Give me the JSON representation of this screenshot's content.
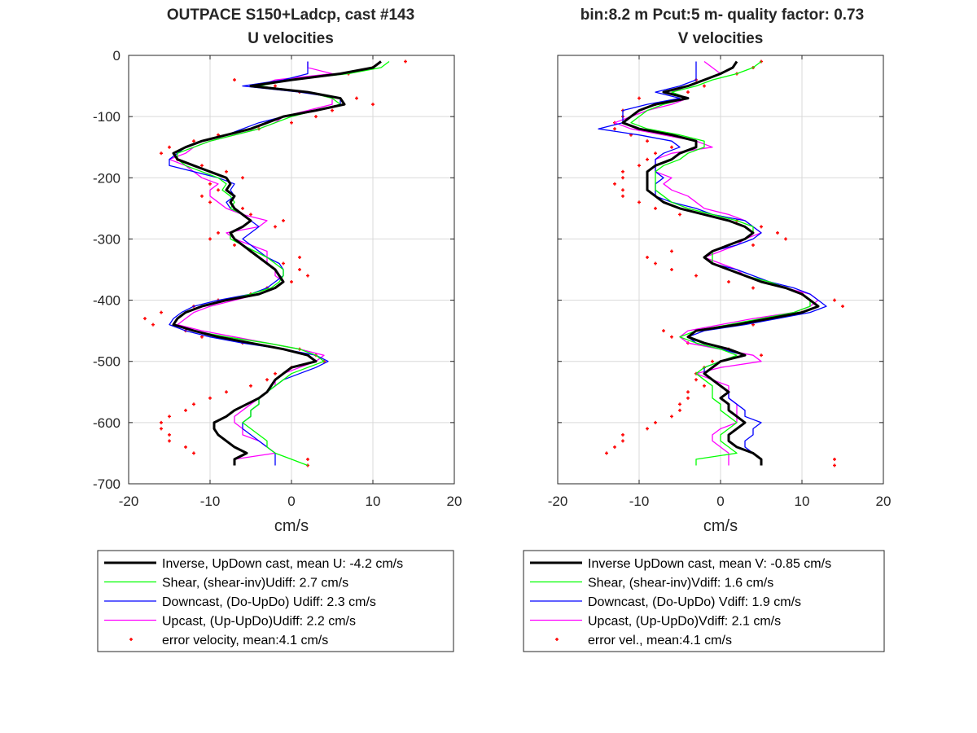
{
  "colors": {
    "inverse": "#000000",
    "shear": "#00ff00",
    "downcast": "#0000ff",
    "upcast": "#ff00ff",
    "error": "#ff0000",
    "grid": "#d9d9d9",
    "axis": "#262626"
  },
  "chart_data": [
    {
      "type": "line",
      "title": "OUTPACE S150+Ladcp, cast #143",
      "subtitle": "U velocities",
      "xlabel": "cm/s",
      "ylabel": "",
      "xlim": [
        -20,
        20
      ],
      "ylim": [
        -700,
        0
      ],
      "xticks": [
        "-20",
        "-10",
        "0",
        "10",
        "20"
      ],
      "yticks": [
        "0",
        "-100",
        "-200",
        "-300",
        "-400",
        "-500",
        "-600",
        "-700"
      ],
      "grid": true,
      "legend": {
        "placement": "below",
        "entries": [
          "Inverse, UpDown cast, mean U:  -4.2 cm/s",
          "Shear, (shear-inv)Udiff:  2.7 cm/s",
          "Downcast, (Do-UpDo) Udiff:  2.3 cm/s",
          "Upcast, (Up-UpDo)Udiff:  2.2 cm/s",
          "error velocity, mean:4.1 cm/s"
        ]
      },
      "depth": [
        -10,
        -20,
        -30,
        -40,
        -50,
        -60,
        -70,
        -80,
        -90,
        -100,
        -110,
        -120,
        -130,
        -140,
        -150,
        -160,
        -170,
        -180,
        -190,
        -200,
        -210,
        -220,
        -230,
        -240,
        -250,
        -260,
        -270,
        -280,
        -290,
        -300,
        -310,
        -320,
        -330,
        -340,
        -350,
        -360,
        -370,
        -380,
        -390,
        -400,
        -410,
        -420,
        -430,
        -440,
        -450,
        -460,
        -470,
        -480,
        -490,
        -500,
        -510,
        -520,
        -530,
        -540,
        -550,
        -560,
        -570,
        -580,
        -590,
        -600,
        -610,
        -620,
        -630,
        -640,
        -650,
        -660,
        -670
      ],
      "series": [
        {
          "key": "inverse",
          "values": [
            11,
            10,
            6,
            0,
            -5,
            2,
            6,
            6.5,
            3,
            -1,
            -3,
            -5,
            -8,
            -11,
            -13,
            -14.5,
            -14,
            -12,
            -10,
            -8,
            -7.5,
            -8,
            -7,
            -7.5,
            -7,
            -6,
            -5,
            -6,
            -7.5,
            -7,
            -6,
            -5,
            -4,
            -3,
            -2,
            -1.5,
            -1,
            -2,
            -4,
            -8,
            -11,
            -13,
            -14,
            -14.5,
            -12,
            -9,
            -5,
            -1,
            2,
            3,
            0,
            -1,
            -2,
            -2.5,
            -3,
            -4,
            -5.5,
            -7,
            -8,
            -9.5,
            -9.5,
            -9,
            -8,
            -7,
            -5.5,
            -7,
            -7
          ]
        },
        {
          "key": "shear",
          "values": [
            12,
            11,
            7,
            0,
            -4,
            2,
            5,
            6,
            3,
            0,
            -2,
            -4,
            -7,
            -10,
            -12,
            -14,
            -14,
            -13,
            -11,
            -9,
            -8,
            -8.5,
            -7.5,
            -7,
            -7.5,
            -6,
            -5,
            -6,
            -7.5,
            -7.5,
            -6,
            -4.5,
            -3,
            -2,
            -1,
            -1,
            -1.5,
            -2.5,
            -5,
            -8,
            -11,
            -13,
            -14,
            -14.5,
            -12,
            -8,
            -3,
            1,
            3,
            4,
            2,
            0,
            -1,
            -2,
            -3,
            -4,
            -4,
            -5,
            -5,
            -6,
            -5,
            -4,
            -3,
            -3,
            -2,
            0,
            2
          ]
        },
        {
          "key": "downcast",
          "values": [
            2,
            2,
            2,
            -1,
            -6,
            1,
            6,
            6,
            3,
            -1,
            -4,
            -6,
            -8,
            -11,
            -13,
            -14,
            -15,
            -15,
            -12,
            -9,
            -7,
            -7.5,
            -7,
            -8,
            -7.5,
            -6,
            -5,
            -4,
            -5,
            -6,
            -5,
            -4,
            -3,
            -1.5,
            -1,
            -1,
            -2,
            -3,
            -5,
            -9,
            -12,
            -13.5,
            -14.5,
            -15,
            -13,
            -10,
            -6,
            -1,
            3,
            4.5,
            3,
            1,
            -1,
            -2,
            -3,
            -4,
            -4,
            -5,
            -5,
            -6,
            -6,
            -5,
            -4,
            -3,
            -2,
            -2,
            -2
          ]
        },
        {
          "key": "upcast",
          "values": [
            2,
            2,
            5,
            -2,
            -4,
            2,
            5,
            5,
            2,
            -1,
            -2,
            -4,
            -7,
            -10,
            -12,
            -13,
            -15,
            -13,
            -12,
            -11,
            -9,
            -10,
            -10,
            -9,
            -8,
            -6,
            -3,
            -4,
            -8,
            -7,
            -5,
            -3,
            -3,
            -3,
            -2,
            -2,
            -1,
            -2,
            -4,
            -7,
            -10,
            -12,
            -13,
            -14,
            -11,
            -7,
            -3,
            1,
            4,
            3,
            1,
            -1,
            -2,
            -2,
            -3,
            -4,
            -5,
            -6,
            -7,
            -7,
            -6,
            -6,
            -4,
            -3,
            -2,
            -7,
            -7
          ]
        },
        {
          "key": "error",
          "values": [
            14,
            10,
            7,
            -7,
            -2,
            1,
            8,
            10,
            5,
            3,
            0,
            -4,
            -9,
            -12,
            -15,
            -16,
            -14,
            -11,
            -8,
            -6,
            -10,
            -9,
            -11,
            -10,
            -6,
            -5,
            -1,
            -2,
            -9,
            -10,
            -7,
            -5,
            1,
            -1,
            1,
            2,
            0,
            -3,
            -5,
            -9,
            -12,
            -16,
            -18,
            -17,
            -13,
            -11,
            -6,
            1,
            3,
            4,
            0,
            -2,
            -3,
            -5,
            -8,
            -10,
            -12,
            -13,
            -15,
            -16,
            -16,
            -15,
            -15,
            -13,
            -12,
            2,
            2
          ]
        }
      ]
    },
    {
      "type": "line",
      "title": "bin:8.2 m  Pcut:5 m- quality factor:  0.73",
      "subtitle": "V velocities",
      "xlabel": "cm/s",
      "ylabel": "",
      "xlim": [
        -20,
        20
      ],
      "ylim": [
        -700,
        0
      ],
      "xticks": [
        "-20",
        "-10",
        "0",
        "10",
        "20"
      ],
      "yticks": [],
      "grid": true,
      "legend": {
        "placement": "below",
        "entries": [
          "Inverse UpDown cast, mean V:  -0.85 cm/s",
          "Shear, (shear-inv)Vdiff:  1.6 cm/s",
          "Downcast, (Do-UpDo) Vdiff:  1.9 cm/s",
          "Upcast, (Up-UpDo)Vdiff:  2.1 cm/s",
          "error vel., mean:4.1 cm/s"
        ]
      },
      "depth": [
        -10,
        -20,
        -30,
        -40,
        -50,
        -60,
        -70,
        -80,
        -90,
        -100,
        -110,
        -120,
        -130,
        -140,
        -150,
        -160,
        -170,
        -180,
        -190,
        -200,
        -210,
        -220,
        -230,
        -240,
        -250,
        -260,
        -270,
        -280,
        -290,
        -300,
        -310,
        -320,
        -330,
        -340,
        -350,
        -360,
        -370,
        -380,
        -390,
        -400,
        -410,
        -420,
        -430,
        -440,
        -450,
        -460,
        -470,
        -480,
        -490,
        -500,
        -510,
        -520,
        -530,
        -540,
        -550,
        -560,
        -570,
        -580,
        -590,
        -600,
        -610,
        -620,
        -630,
        -640,
        -650,
        -660,
        -670
      ],
      "series": [
        {
          "key": "inverse",
          "values": [
            2,
            1.5,
            0,
            -2,
            -4,
            -7,
            -4,
            -8,
            -10,
            -11,
            -12,
            -10,
            -6,
            -3,
            -3,
            -5,
            -6,
            -8,
            -9,
            -9,
            -9,
            -9,
            -8,
            -7,
            -5,
            -2,
            1,
            3,
            4,
            3,
            1,
            -1,
            -2,
            -1,
            1,
            3,
            5,
            8,
            10,
            11,
            12,
            10,
            6,
            2,
            -3,
            -4,
            -2,
            1,
            3,
            0,
            -1,
            -2,
            -1,
            0,
            1,
            0,
            1,
            1,
            2,
            3,
            2,
            1,
            1,
            2,
            4,
            5,
            5
          ]
        },
        {
          "key": "shear",
          "values": [
            5,
            4,
            2,
            -1,
            -3,
            -6,
            -4,
            -7,
            -9,
            -10,
            -11,
            -9,
            -5,
            -2,
            -2,
            -4,
            -5,
            -7,
            -8,
            -8,
            -8,
            -8,
            -7,
            -6,
            -4,
            -1,
            2,
            4,
            4,
            3,
            1,
            -1,
            -1,
            -1,
            1,
            3,
            6,
            8,
            10,
            11,
            11,
            9,
            5,
            1,
            -3,
            -5,
            -3,
            0,
            2,
            0,
            -2,
            -3,
            -2,
            -1,
            -1,
            -1,
            0,
            0,
            1,
            2,
            1,
            0,
            0,
            1,
            2,
            -3,
            -3
          ]
        },
        {
          "key": "downcast",
          "values": [
            -3,
            -3,
            -3,
            -3,
            -5,
            -8,
            -5,
            -9,
            -12,
            -12,
            -12,
            -15,
            -10,
            -6,
            -5,
            -7,
            -8,
            -8,
            -8,
            -7,
            -8,
            -8,
            -8,
            -6,
            -3,
            -1,
            3,
            4,
            5,
            4,
            2,
            -1,
            -2,
            -1,
            2,
            4,
            6,
            9,
            11,
            12,
            13,
            11,
            7,
            3,
            -2,
            -4,
            -3,
            0,
            3,
            0,
            -2,
            -2,
            -1,
            0,
            1,
            1,
            2,
            3,
            3,
            5,
            4,
            4,
            3,
            3,
            4,
            5,
            5
          ]
        },
        {
          "key": "upcast",
          "values": [
            -2,
            -1,
            0,
            -2,
            -4,
            -6,
            -4,
            -6,
            -9,
            -11,
            -13,
            -11,
            -7,
            -3,
            -1,
            -6,
            -8,
            -8,
            -8,
            -6,
            -7,
            -6,
            -4,
            -3,
            -2,
            1,
            3,
            4,
            5,
            3,
            2,
            0,
            -2,
            0,
            2,
            3,
            6,
            8,
            11,
            12,
            11,
            9,
            4,
            0,
            -4,
            -5,
            -4,
            0,
            4,
            5,
            0,
            -3,
            -1,
            1,
            1,
            1,
            2,
            2,
            2,
            2,
            0,
            -1,
            -1,
            0,
            1,
            1,
            1
          ]
        },
        {
          "key": "error",
          "values": [
            5,
            4,
            2,
            -3,
            -2,
            -4,
            -10,
            -8,
            -12,
            -12,
            -13,
            -13,
            -11,
            -9,
            -6,
            -8,
            -9,
            -10,
            -12,
            -12,
            -13,
            -12,
            -12,
            -10,
            -8,
            -5,
            2,
            5,
            7,
            8,
            4,
            -6,
            -9,
            -8,
            -6,
            -3,
            1,
            4,
            10,
            14,
            15,
            10,
            6,
            4,
            -7,
            -6,
            -4,
            1,
            5,
            -1,
            -2,
            -3,
            -3,
            -2,
            -4,
            -4,
            -5,
            -5,
            -6,
            -8,
            -9,
            -12,
            -12,
            -13,
            -14,
            14,
            14
          ]
        }
      ]
    }
  ]
}
